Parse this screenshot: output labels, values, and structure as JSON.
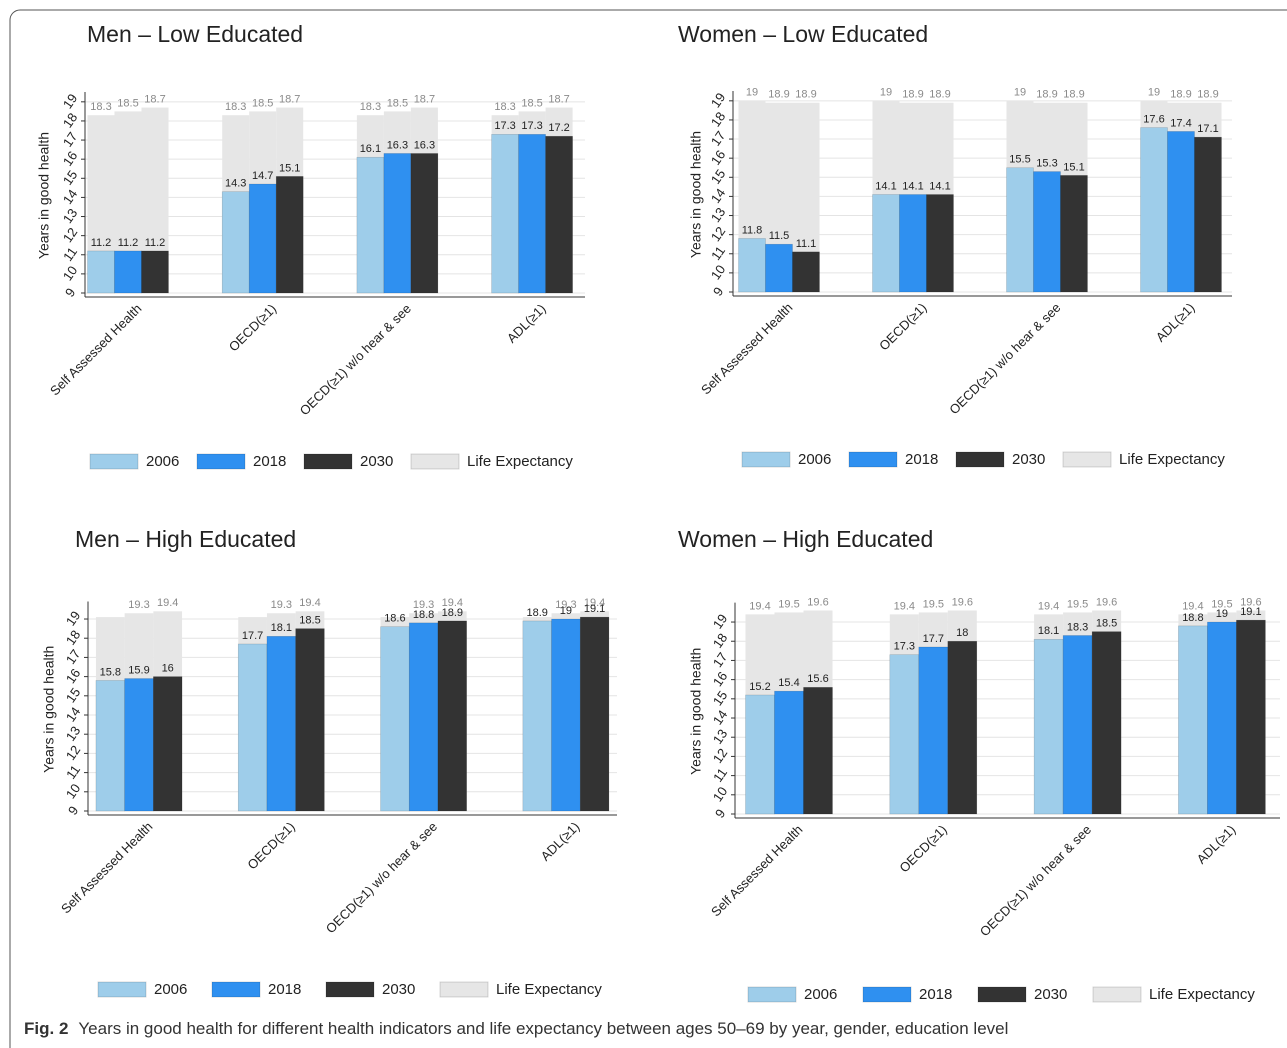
{
  "chart_data": [
    {
      "type": "bar",
      "title": "Men – Low Educated",
      "y_label": "Years in good health",
      "categories": [
        "Self Assessed Health",
        "OECD(≥1)",
        "OECD(≥1) w/o hear & see",
        "ADL(≥1)"
      ],
      "series": [
        {
          "name": "2006",
          "color": "#9ecdea",
          "values": [
            11.2,
            14.3,
            16.1,
            17.3
          ]
        },
        {
          "name": "2018",
          "color": "#2f90f0",
          "values": [
            11.2,
            14.7,
            16.3,
            17.3
          ]
        },
        {
          "name": "2030",
          "color": "#333333",
          "values": [
            11.2,
            15.1,
            16.3,
            17.2
          ]
        }
      ],
      "background": {
        "name": "Life Expectancy",
        "color": "#e6e6e6",
        "values": [
          18.3,
          18.5,
          18.7
        ]
      },
      "ylim": [
        9,
        19.2
      ],
      "yticks": [
        9,
        10,
        11,
        12,
        13,
        14,
        15,
        16,
        17,
        18,
        19
      ],
      "grid": true
    },
    {
      "type": "bar",
      "title": "Women – Low Educated",
      "y_label": "Years in good health",
      "categories": [
        "Self Assessed Health",
        "OECD(≥1)",
        "OECD(≥1) w/o hear & see",
        "ADL(≥1)"
      ],
      "series": [
        {
          "name": "2006",
          "color": "#9ecdea",
          "values": [
            11.8,
            14.1,
            15.5,
            17.6
          ]
        },
        {
          "name": "2018",
          "color": "#2f90f0",
          "values": [
            11.5,
            14.1,
            15.3,
            17.4
          ]
        },
        {
          "name": "2030",
          "color": "#333333",
          "values": [
            11.1,
            14.1,
            15.1,
            17.1
          ]
        }
      ],
      "background": {
        "name": "Life Expectancy",
        "color": "#e6e6e6",
        "values": [
          19,
          18.9,
          18.9
        ]
      },
      "ylim": [
        9,
        19.2
      ],
      "yticks": [
        9,
        10,
        11,
        12,
        13,
        14,
        15,
        16,
        17,
        18,
        19
      ],
      "grid": true
    },
    {
      "type": "bar",
      "title": "Men – High Educated",
      "y_label": "Years in good health",
      "categories": [
        "Self Assessed Health",
        "OECD(≥1)",
        "OECD(≥1) w/o hear & see",
        "ADL(≥1)"
      ],
      "series": [
        {
          "name": "2006",
          "color": "#9ecdea",
          "values": [
            15.8,
            17.7,
            18.6,
            18.9
          ]
        },
        {
          "name": "2018",
          "color": "#2f90f0",
          "values": [
            15.9,
            18.1,
            18.8,
            19
          ]
        },
        {
          "name": "2030",
          "color": "#333333",
          "values": [
            16,
            18.5,
            18.9,
            19.1
          ]
        }
      ],
      "background": {
        "name": "Life Expectancy",
        "color": "#e6e6e6",
        "values": [
          19.1,
          19.3,
          19.4
        ],
        "value_labels": [
          null,
          "19.3",
          "19.4"
        ]
      },
      "ylim": [
        9,
        19.6
      ],
      "yticks": [
        9,
        10,
        11,
        12,
        13,
        14,
        15,
        16,
        17,
        18,
        19
      ],
      "grid": true
    },
    {
      "type": "bar",
      "title": "Women – High Educated",
      "y_label": "Years in good health",
      "categories": [
        "Self Assessed Health",
        "OECD(≥1)",
        "OECD(≥1) w/o hear & see",
        "ADL(≥1)"
      ],
      "series": [
        {
          "name": "2006",
          "color": "#9ecdea",
          "values": [
            15.2,
            17.3,
            18.1,
            18.8
          ]
        },
        {
          "name": "2018",
          "color": "#2f90f0",
          "values": [
            15.4,
            17.7,
            18.3,
            19
          ]
        },
        {
          "name": "2030",
          "color": "#333333",
          "values": [
            15.6,
            18,
            18.5,
            19.1
          ]
        }
      ],
      "background": {
        "name": "Life Expectancy",
        "color": "#e6e6e6",
        "values": [
          19.4,
          19.5,
          19.6
        ]
      },
      "ylim": [
        9,
        19.7
      ],
      "yticks": [
        9,
        10,
        11,
        12,
        13,
        14,
        15,
        16,
        17,
        18,
        19
      ],
      "grid": true
    }
  ],
  "caption": {
    "label": "Fig. 2",
    "text": "Years in good health for different health indicators and life expectancy between ages 50–69 by year, gender, education level"
  }
}
